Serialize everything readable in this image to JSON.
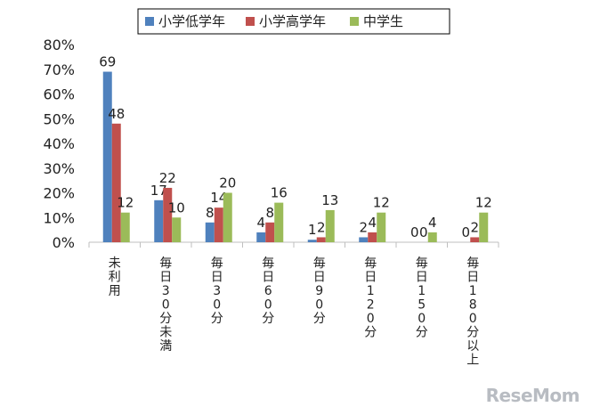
{
  "colors": {
    "series": [
      "#4f81bd",
      "#c0504d",
      "#9bbb59"
    ],
    "text": "#222222",
    "axis": "#bfbfbf",
    "legend_border": "#000000"
  },
  "watermark": "ReseMom",
  "chart_data": {
    "type": "bar",
    "title": "",
    "xlabel": "",
    "ylabel": "",
    "ylim": [
      0,
      80
    ],
    "yticks": [
      "0%",
      "10%",
      "20%",
      "30%",
      "40%",
      "50%",
      "60%",
      "70%",
      "80%"
    ],
    "grid": false,
    "legend_position": "top",
    "category_label_orientation": "vertical",
    "categories": [
      "未利用",
      "毎日30分未満",
      "毎日30分",
      "毎日60分",
      "毎日90分",
      "毎日120分",
      "毎日150分",
      "毎日180分以上"
    ],
    "series": [
      {
        "name": "小学低学年",
        "values": [
          69,
          17,
          8,
          4,
          1,
          2,
          0,
          0
        ]
      },
      {
        "name": "小学高学年",
        "values": [
          48,
          22,
          14,
          8,
          2,
          4,
          0,
          2
        ]
      },
      {
        "name": "中学生",
        "values": [
          12,
          10,
          20,
          16,
          13,
          12,
          4,
          12
        ]
      }
    ]
  }
}
